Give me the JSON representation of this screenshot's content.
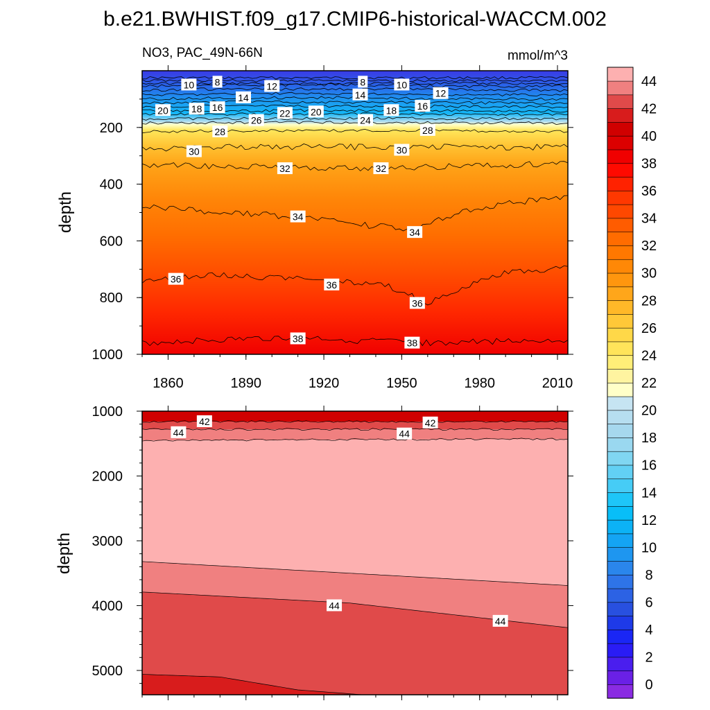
{
  "title": "b.e21.BWHIST.f09_g17.CMIP6-historical-WACCM.002",
  "chart_data": [
    {
      "type": "contour",
      "panel": "upper",
      "subtitle_left": "NO3, PAC_49N-66N",
      "subtitle_right": "mmol/m^3",
      "ylabel": "depth",
      "xlabel": "",
      "x_range": [
        1850,
        2014
      ],
      "y_range": [
        0,
        1000
      ],
      "y_reversed": true,
      "x_ticks": [
        "1860",
        "1890",
        "1920",
        "1950",
        "1980",
        "2010"
      ],
      "x_tick_values": [
        1860,
        1890,
        1920,
        1950,
        1980,
        2010
      ],
      "y_ticks": [
        "200",
        "400",
        "600",
        "800",
        "1000"
      ],
      "y_tick_values": [
        200,
        400,
        600,
        800,
        1000
      ],
      "isolines": [
        {
          "level": 2,
          "depths": [
            [
              1850,
              25
            ],
            [
              1900,
              25
            ],
            [
              1950,
              25
            ],
            [
              2014,
              25
            ]
          ]
        },
        {
          "level": 4,
          "depths": [
            [
              1850,
              35
            ],
            [
              1900,
              35
            ],
            [
              1950,
              35
            ],
            [
              2014,
              35
            ]
          ]
        },
        {
          "level": 6,
          "depths": [
            [
              1850,
              45
            ],
            [
              1900,
              45
            ],
            [
              1950,
              45
            ],
            [
              2014,
              45
            ]
          ]
        },
        {
          "level": 8,
          "depths": [
            [
              1850,
              55
            ],
            [
              1880,
              50
            ],
            [
              1935,
              50
            ],
            [
              1970,
              55
            ],
            [
              2014,
              55
            ]
          ]
        },
        {
          "level": 10,
          "depths": [
            [
              1850,
              70
            ],
            [
              1868,
              65
            ],
            [
              1950,
              65
            ],
            [
              2014,
              70
            ]
          ]
        },
        {
          "level": 12,
          "depths": [
            [
              1850,
              85
            ],
            [
              1900,
              80
            ],
            [
              1965,
              85
            ],
            [
              2014,
              85
            ]
          ]
        },
        {
          "level": 14,
          "depths": [
            [
              1850,
              100
            ],
            [
              1889,
              95
            ],
            [
              1928,
              95
            ],
            [
              1980,
              100
            ],
            [
              2014,
              100
            ]
          ]
        },
        {
          "level": 16,
          "depths": [
            [
              1850,
              115
            ],
            [
              1879,
              110
            ],
            [
              1958,
              112
            ],
            [
              2014,
              115
            ]
          ]
        },
        {
          "level": 18,
          "depths": [
            [
              1850,
              128
            ],
            [
              1871,
              125
            ],
            [
              1946,
              125
            ],
            [
              2014,
              128
            ]
          ]
        },
        {
          "level": 20,
          "depths": [
            [
              1850,
              142
            ],
            [
              1917,
              140
            ],
            [
              2014,
              142
            ]
          ]
        },
        {
          "level": 22,
          "depths": [
            [
              1850,
              155
            ],
            [
              1905,
              152
            ],
            [
              2014,
              155
            ]
          ]
        },
        {
          "level": 24,
          "depths": [
            [
              1850,
              170
            ],
            [
              1936,
              168
            ],
            [
              2014,
              170
            ]
          ]
        },
        {
          "level": 26,
          "depths": [
            [
              1850,
              185
            ],
            [
              1894,
              182
            ],
            [
              2014,
              185
            ]
          ]
        },
        {
          "level": 28,
          "depths": [
            [
              1850,
              215
            ],
            [
              1880,
              212
            ],
            [
              1960,
              210
            ],
            [
              2014,
              215
            ]
          ]
        },
        {
          "level": 30,
          "depths": [
            [
              1850,
              275
            ],
            [
              1870,
              270
            ],
            [
              1950,
              268
            ],
            [
              2014,
              270
            ]
          ]
        },
        {
          "level": 32,
          "depths": [
            [
              1850,
              330
            ],
            [
              1900,
              340
            ],
            [
              1940,
              345
            ],
            [
              1980,
              335
            ],
            [
              2014,
              325
            ]
          ]
        },
        {
          "level": 34,
          "depths": [
            [
              1850,
              480
            ],
            [
              1880,
              500
            ],
            [
              1910,
              515
            ],
            [
              1930,
              540
            ],
            [
              1955,
              560
            ],
            [
              1975,
              490
            ],
            [
              2014,
              440
            ]
          ]
        },
        {
          "level": 36,
          "depths": [
            [
              1850,
              740
            ],
            [
              1880,
              720
            ],
            [
              1920,
              740
            ],
            [
              1945,
              760
            ],
            [
              1960,
              820
            ],
            [
              1985,
              720
            ],
            [
              2014,
              690
            ]
          ]
        },
        {
          "level": 38,
          "depths": [
            [
              1850,
              960
            ],
            [
              1880,
              950
            ],
            [
              1910,
              940
            ],
            [
              1930,
              950
            ],
            [
              1955,
              960
            ],
            [
              1985,
              955
            ],
            [
              2014,
              950
            ]
          ]
        }
      ],
      "contour_labels": [
        {
          "text": "8",
          "x": 1879,
          "y": 40
        },
        {
          "text": "10",
          "x": 1868,
          "y": 50
        },
        {
          "text": "12",
          "x": 1900,
          "y": 55
        },
        {
          "text": "14",
          "x": 1889,
          "y": 95
        },
        {
          "text": "14",
          "x": 1934,
          "y": 85
        },
        {
          "text": "8",
          "x": 1935,
          "y": 40
        },
        {
          "text": "10",
          "x": 1950,
          "y": 50
        },
        {
          "text": "12",
          "x": 1965,
          "y": 80
        },
        {
          "text": "16",
          "x": 1879,
          "y": 130
        },
        {
          "text": "18",
          "x": 1871,
          "y": 135
        },
        {
          "text": "20",
          "x": 1858,
          "y": 140
        },
        {
          "text": "16",
          "x": 1958,
          "y": 125
        },
        {
          "text": "18",
          "x": 1946,
          "y": 140
        },
        {
          "text": "20",
          "x": 1917,
          "y": 145
        },
        {
          "text": "22",
          "x": 1905,
          "y": 150
        },
        {
          "text": "26",
          "x": 1894,
          "y": 175
        },
        {
          "text": "24",
          "x": 1936,
          "y": 175
        },
        {
          "text": "28",
          "x": 1880,
          "y": 215
        },
        {
          "text": "28",
          "x": 1960,
          "y": 210
        },
        {
          "text": "30",
          "x": 1870,
          "y": 285
        },
        {
          "text": "30",
          "x": 1950,
          "y": 280
        },
        {
          "text": "32",
          "x": 1905,
          "y": 345
        },
        {
          "text": "32",
          "x": 1942,
          "y": 345
        },
        {
          "text": "34",
          "x": 1910,
          "y": 515
        },
        {
          "text": "34",
          "x": 1955,
          "y": 570
        },
        {
          "text": "36",
          "x": 1863,
          "y": 735
        },
        {
          "text": "36",
          "x": 1923,
          "y": 755
        },
        {
          "text": "36",
          "x": 1956,
          "y": 820
        },
        {
          "text": "38",
          "x": 1910,
          "y": 945
        },
        {
          "text": "38",
          "x": 1954,
          "y": 960
        }
      ]
    },
    {
      "type": "contour",
      "panel": "lower",
      "ylabel": "depth",
      "x_range": [
        1850,
        2014
      ],
      "y_range": [
        1000,
        5375
      ],
      "y_reversed": true,
      "x_ticks": [],
      "y_ticks": [
        "1000",
        "2000",
        "3000",
        "4000",
        "5000"
      ],
      "y_tick_values": [
        1000,
        2000,
        3000,
        4000,
        5000
      ],
      "isolines": [
        {
          "level": 42,
          "depths": [
            [
              1850,
              1160
            ],
            [
              2014,
              1160
            ]
          ]
        },
        {
          "level": 44,
          "depths": [
            [
              1850,
              1280
            ],
            [
              2014,
              1280
            ]
          ]
        },
        {
          "level": 46,
          "depths": [
            [
              1850,
              1450
            ],
            [
              1920,
              1440
            ],
            [
              2014,
              1430
            ]
          ]
        },
        {
          "level": 44,
          "depths": [
            [
              1850,
              3320
            ],
            [
              1930,
              3500
            ],
            [
              2014,
              3690
            ]
          ]
        },
        {
          "level": 42,
          "depths": [
            [
              1850,
              3790
            ],
            [
              1930,
              3960
            ],
            [
              2014,
              4340
            ]
          ]
        },
        {
          "level": 40,
          "depths": [
            [
              1850,
              5060
            ],
            [
              1880,
              5100
            ],
            [
              1910,
              5300
            ],
            [
              1935,
              5375
            ]
          ]
        }
      ],
      "contour_labels": [
        {
          "text": "42",
          "x": 1874,
          "y": 1160
        },
        {
          "text": "42",
          "x": 1961,
          "y": 1180
        },
        {
          "text": "44",
          "x": 1864,
          "y": 1330
        },
        {
          "text": "44",
          "x": 1951,
          "y": 1350
        },
        {
          "text": "44",
          "x": 1924,
          "y": 4000
        },
        {
          "text": "44",
          "x": 1988,
          "y": 4240
        }
      ]
    }
  ],
  "colorbar": {
    "labels": [
      "0",
      "2",
      "4",
      "6",
      "8",
      "10",
      "12",
      "14",
      "16",
      "18",
      "20",
      "22",
      "24",
      "26",
      "28",
      "30",
      "32",
      "34",
      "36",
      "38",
      "40",
      "42",
      "44"
    ],
    "colors": [
      "#8a2be2",
      "#6a20e6",
      "#4a1eee",
      "#2a1cf5",
      "#1a26f5",
      "#1e3ae8",
      "#2850e0",
      "#2c62e4",
      "#2e74e8",
      "#2a86ec",
      "#1e96f0",
      "#14a4f4",
      "#0cb2f6",
      "#08bef8",
      "#1ec6f8",
      "#46ccf6",
      "#62d0f4",
      "#80d6f2",
      "#9ad8f0",
      "#a6d8ee",
      "#b6def0",
      "#c6e4f2",
      "#ffffc8",
      "#fff4a0",
      "#ffee78",
      "#ffe45a",
      "#ffd848",
      "#ffc838",
      "#ffb828",
      "#ffa61a",
      "#ff960e",
      "#ff8806",
      "#ff7800",
      "#ff6c00",
      "#ff5c00",
      "#ff4800",
      "#ff3800",
      "#ff2200",
      "#ff0a00",
      "#f00000",
      "#dc0000",
      "#d00000",
      "#d81c1c",
      "#e04a4a",
      "#f08080",
      "#fdb0b0"
    ]
  }
}
